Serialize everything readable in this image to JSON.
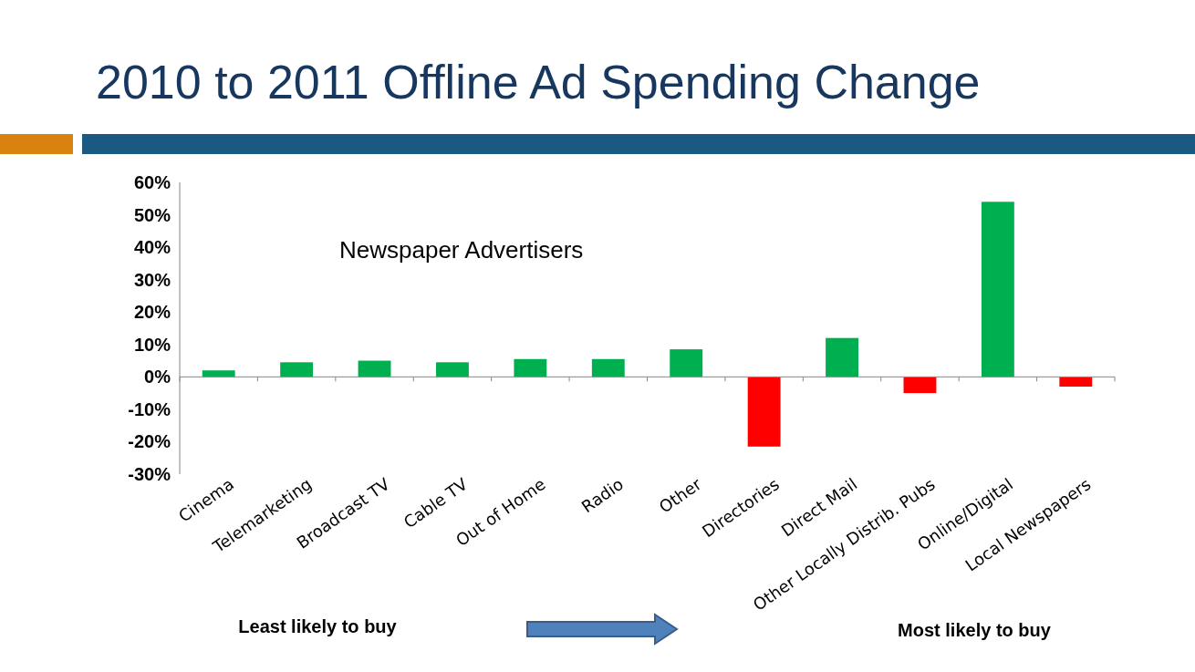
{
  "chart_data": {
    "type": "bar",
    "title": "2010 to 2011 Offline Ad Spending Change",
    "categories": [
      "Cinema",
      "Telemarketing",
      "Broadcast TV",
      "Cable TV",
      "Out of Home",
      "Radio",
      "Other",
      "Directories",
      "Direct Mail",
      "Other Locally Distrib. Pubs",
      "Online/Digital",
      "Local Newspapers"
    ],
    "values": [
      2,
      4.5,
      5,
      4.5,
      5.5,
      5.5,
      8.5,
      -21.5,
      12,
      -5,
      54,
      -3
    ],
    "colors": [
      "#00b050",
      "#00b050",
      "#00b050",
      "#00b050",
      "#00b050",
      "#00b050",
      "#00b050",
      "#ff0000",
      "#00b050",
      "#ff0000",
      "#00b050",
      "#ff0000"
    ],
    "ylim": [
      -30,
      60
    ],
    "yticks": [
      {
        "value": -30,
        "label": "-30%"
      },
      {
        "value": -20,
        "label": "-20%"
      },
      {
        "value": -10,
        "label": "-10%"
      },
      {
        "value": 0,
        "label": "0%"
      },
      {
        "value": 10,
        "label": "10%"
      },
      {
        "value": 20,
        "label": "20%"
      },
      {
        "value": 30,
        "label": "30%"
      },
      {
        "value": 40,
        "label": "40%"
      },
      {
        "value": 50,
        "label": "50%"
      },
      {
        "value": 60,
        "label": "60%"
      }
    ],
    "annotations": [
      "Newspaper Advertisers",
      "Least likely to buy",
      "Most likely to buy"
    ]
  }
}
